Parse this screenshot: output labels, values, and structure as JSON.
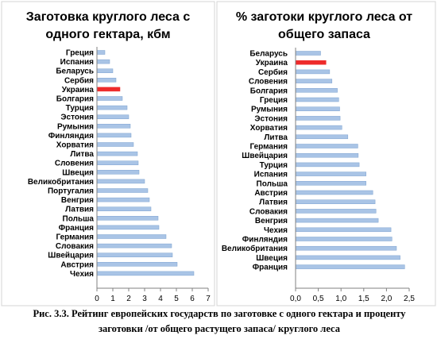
{
  "colors": {
    "bar": "#a9c4e6",
    "bar_edge": "#7fa3d0",
    "highlight": "#ee2b2b",
    "frame": "#d4d4d4"
  },
  "chart_data": [
    {
      "type": "bar",
      "orientation": "horizontal",
      "title_lines": [
        "Заготовка круглого леса с",
        "одного гектара, кбм"
      ],
      "categories": [
        "Греция",
        "Испания",
        "Беларусь",
        "Сербия",
        "Украина",
        "Болгария",
        "Турция",
        "Эстония",
        "Румыния",
        "Финляндия",
        "Хорватия",
        "Литва",
        "Словения",
        "Швеция",
        "Великобритания",
        "Португалия",
        "Венгрия",
        "Латвия",
        "Польша",
        "Франция",
        "Германия",
        "Словакия",
        "Швейцария",
        "Австрия",
        "Чехия"
      ],
      "values": [
        0.5,
        0.8,
        1.0,
        1.2,
        1.45,
        1.6,
        1.9,
        2.0,
        2.1,
        2.15,
        2.3,
        2.55,
        2.6,
        2.65,
        3.0,
        3.2,
        3.3,
        3.4,
        3.85,
        3.9,
        4.35,
        4.7,
        4.75,
        5.05,
        6.1
      ],
      "highlight": [
        "Украина"
      ],
      "xlim": [
        0,
        7
      ],
      "xticks": [
        "0",
        "1",
        "2",
        "3",
        "4",
        "5",
        "6",
        "7"
      ],
      "grid": false
    },
    {
      "type": "bar",
      "orientation": "horizontal",
      "title_lines": [
        "% заготоки круглого леса от",
        "общего запаса"
      ],
      "categories": [
        "Беларусь",
        "Украина",
        "Сербия",
        "Словения",
        "Болгария",
        "Греция",
        "Румыния",
        "Эстония",
        "Хорватия",
        "Литва",
        "Германия",
        "Швейцария",
        "Турция",
        "Испания",
        "Польша",
        "Австрия",
        "Латвия",
        "Словакия",
        "Венгрия",
        "Чехия",
        "Финляндия",
        "Великобритания",
        "Швеция",
        "Франция"
      ],
      "values": [
        0.55,
        0.67,
        0.75,
        0.8,
        0.92,
        0.95,
        0.97,
        0.98,
        1.02,
        1.15,
        1.37,
        1.38,
        1.4,
        1.55,
        1.55,
        1.7,
        1.75,
        1.77,
        1.82,
        2.1,
        2.12,
        2.22,
        2.3,
        2.4
      ],
      "highlight": [
        "Украина"
      ],
      "xlim": [
        0,
        2.5
      ],
      "xticks": [
        "0,0",
        "0,5",
        "1,0",
        "1,5",
        "2,0",
        "2,5"
      ],
      "grid": false
    }
  ],
  "caption": {
    "line1": "Рис. 3.3.  Рейтинг европейских государств по заготовке  с одного гектара и проценту",
    "line2": "заготовки /от общего растущего запаса/ круглого леса"
  }
}
